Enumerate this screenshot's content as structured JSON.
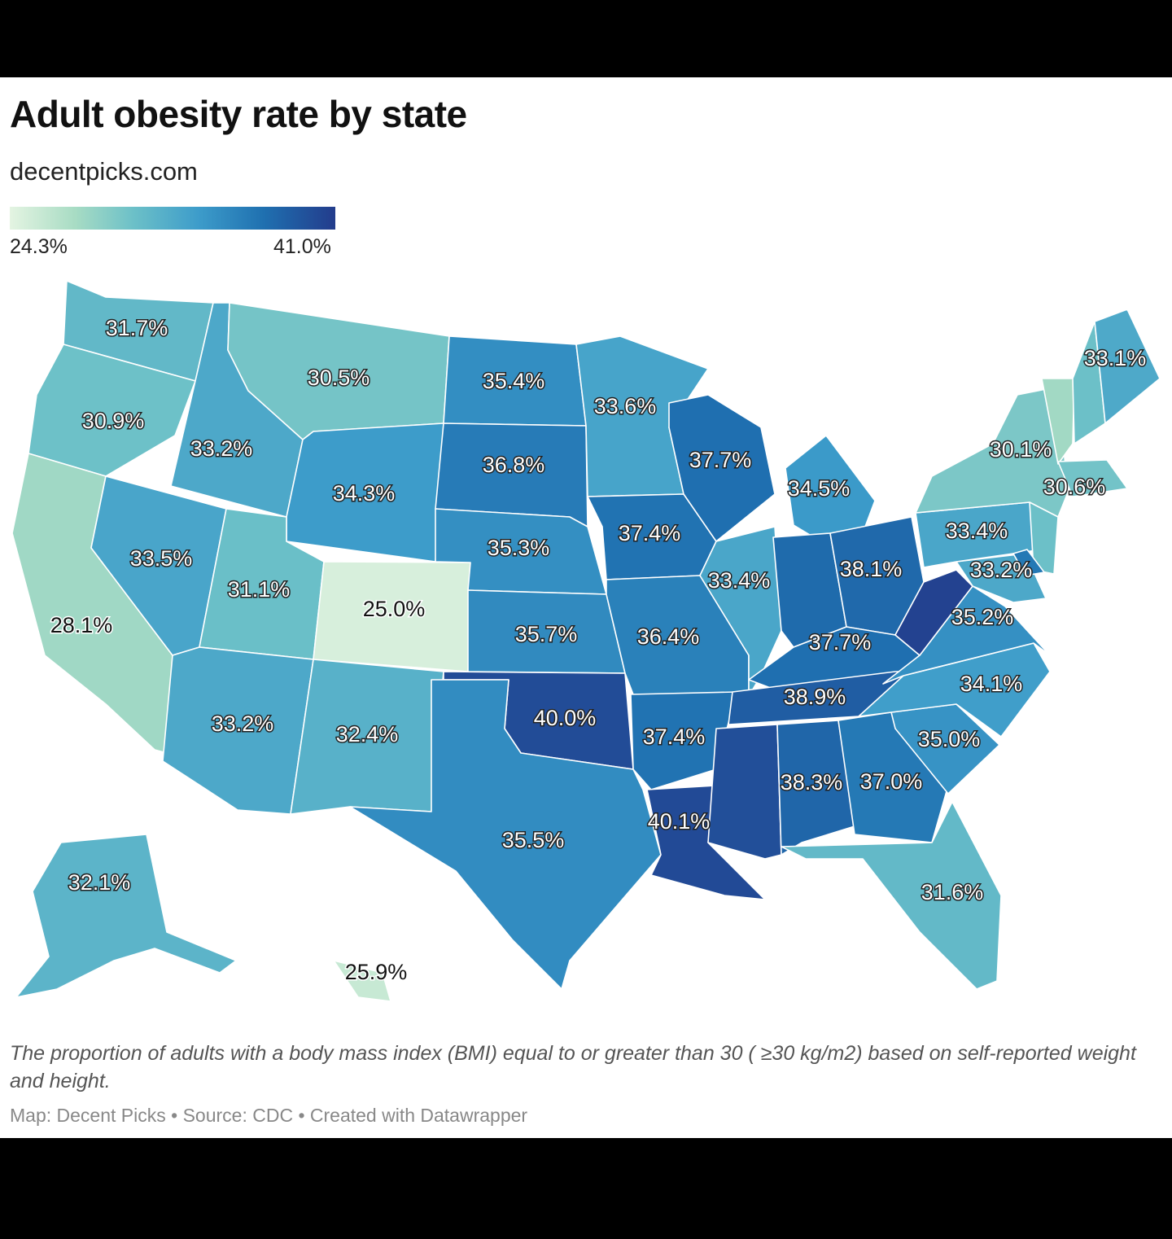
{
  "title": "Adult obesity rate by state",
  "subtitle": "decentpicks.com",
  "legend": {
    "min_label": "24.3%",
    "max_label": "41.0%",
    "min": 24.3,
    "max": 41.0,
    "colors": [
      "#e4f4e2",
      "#a8dcc4",
      "#6cc0c8",
      "#3d9cca",
      "#1f70b0",
      "#233c8c"
    ]
  },
  "description": "The proportion of adults with a body mass index (BMI) equal to or greater than 30 ( ≥30 kg/m2) based on self-reported weight and height.",
  "credit": "Map: Decent Picks • Source: CDC • Created with Datawrapper",
  "chart_data": {
    "type": "choropleth",
    "title": "Adult obesity rate by state",
    "states": [
      {
        "state": "WA",
        "value": 31.7,
        "label": "31.7%"
      },
      {
        "state": "OR",
        "value": 30.9,
        "label": "30.9%"
      },
      {
        "state": "CA",
        "value": 28.1,
        "label": "28.1%"
      },
      {
        "state": "ID",
        "value": 33.2,
        "label": "33.2%"
      },
      {
        "state": "NV",
        "value": 33.5,
        "label": "33.5%"
      },
      {
        "state": "MT",
        "value": 30.5,
        "label": "30.5%"
      },
      {
        "state": "WY",
        "value": 34.3,
        "label": "34.3%"
      },
      {
        "state": "UT",
        "value": 31.1,
        "label": "31.1%"
      },
      {
        "state": "CO",
        "value": 25.0,
        "label": "25.0%"
      },
      {
        "state": "AZ",
        "value": 33.2,
        "label": "33.2%"
      },
      {
        "state": "NM",
        "value": 32.4,
        "label": "32.4%"
      },
      {
        "state": "ND",
        "value": 35.4,
        "label": "35.4%"
      },
      {
        "state": "SD",
        "value": 36.8,
        "label": "36.8%"
      },
      {
        "state": "NE",
        "value": 35.3,
        "label": "35.3%"
      },
      {
        "state": "KS",
        "value": 35.7,
        "label": "35.7%"
      },
      {
        "state": "OK",
        "value": 40.0,
        "label": "40.0%"
      },
      {
        "state": "TX",
        "value": 35.5,
        "label": "35.5%"
      },
      {
        "state": "MN",
        "value": 33.6,
        "label": "33.6%"
      },
      {
        "state": "IA",
        "value": 37.4,
        "label": "37.4%"
      },
      {
        "state": "MO",
        "value": 36.4,
        "label": "36.4%"
      },
      {
        "state": "AR",
        "value": 37.4,
        "label": "37.4%"
      },
      {
        "state": "LA",
        "value": 40.1,
        "label": "40.1%"
      },
      {
        "state": "WI",
        "value": 37.7,
        "label": "37.7%"
      },
      {
        "state": "IL",
        "value": 33.4,
        "label": "33.4%"
      },
      {
        "state": "MI",
        "value": 34.5,
        "label": "34.5%"
      },
      {
        "state": "IN",
        "value": 38.0
      },
      {
        "state": "OH",
        "value": 38.1,
        "label": "38.1%"
      },
      {
        "state": "KY",
        "value": 37.7,
        "label": "37.7%"
      },
      {
        "state": "TN",
        "value": 38.9,
        "label": "38.9%"
      },
      {
        "state": "MS",
        "value": 39.8
      },
      {
        "state": "AL",
        "value": 38.3,
        "label": "38.3%"
      },
      {
        "state": "GA",
        "value": 37.0,
        "label": "37.0%"
      },
      {
        "state": "FL",
        "value": 31.6,
        "label": "31.6%"
      },
      {
        "state": "SC",
        "value": 35.0,
        "label": "35.0%"
      },
      {
        "state": "NC",
        "value": 34.1,
        "label": "34.1%"
      },
      {
        "state": "VA",
        "value": 35.2,
        "label": "35.2%"
      },
      {
        "state": "WV",
        "value": 40.6
      },
      {
        "state": "MD",
        "value": 33.2,
        "label": "33.2%"
      },
      {
        "state": "PA",
        "value": 33.4,
        "label": "33.4%"
      },
      {
        "state": "NY",
        "value": 30.1,
        "label": "30.1%"
      },
      {
        "state": "NJ",
        "value": 31.0
      },
      {
        "state": "VT",
        "value": 28.0
      },
      {
        "state": "NH",
        "value": 31.0
      },
      {
        "state": "ME",
        "value": 33.1,
        "label": "33.1%"
      },
      {
        "state": "MA",
        "value": 30.6,
        "label": "30.6%"
      },
      {
        "state": "DE",
        "value": 37.0
      },
      {
        "state": "AK",
        "value": 32.1,
        "label": "32.1%"
      },
      {
        "state": "HI",
        "value": 25.9,
        "label": "25.9%"
      }
    ]
  }
}
